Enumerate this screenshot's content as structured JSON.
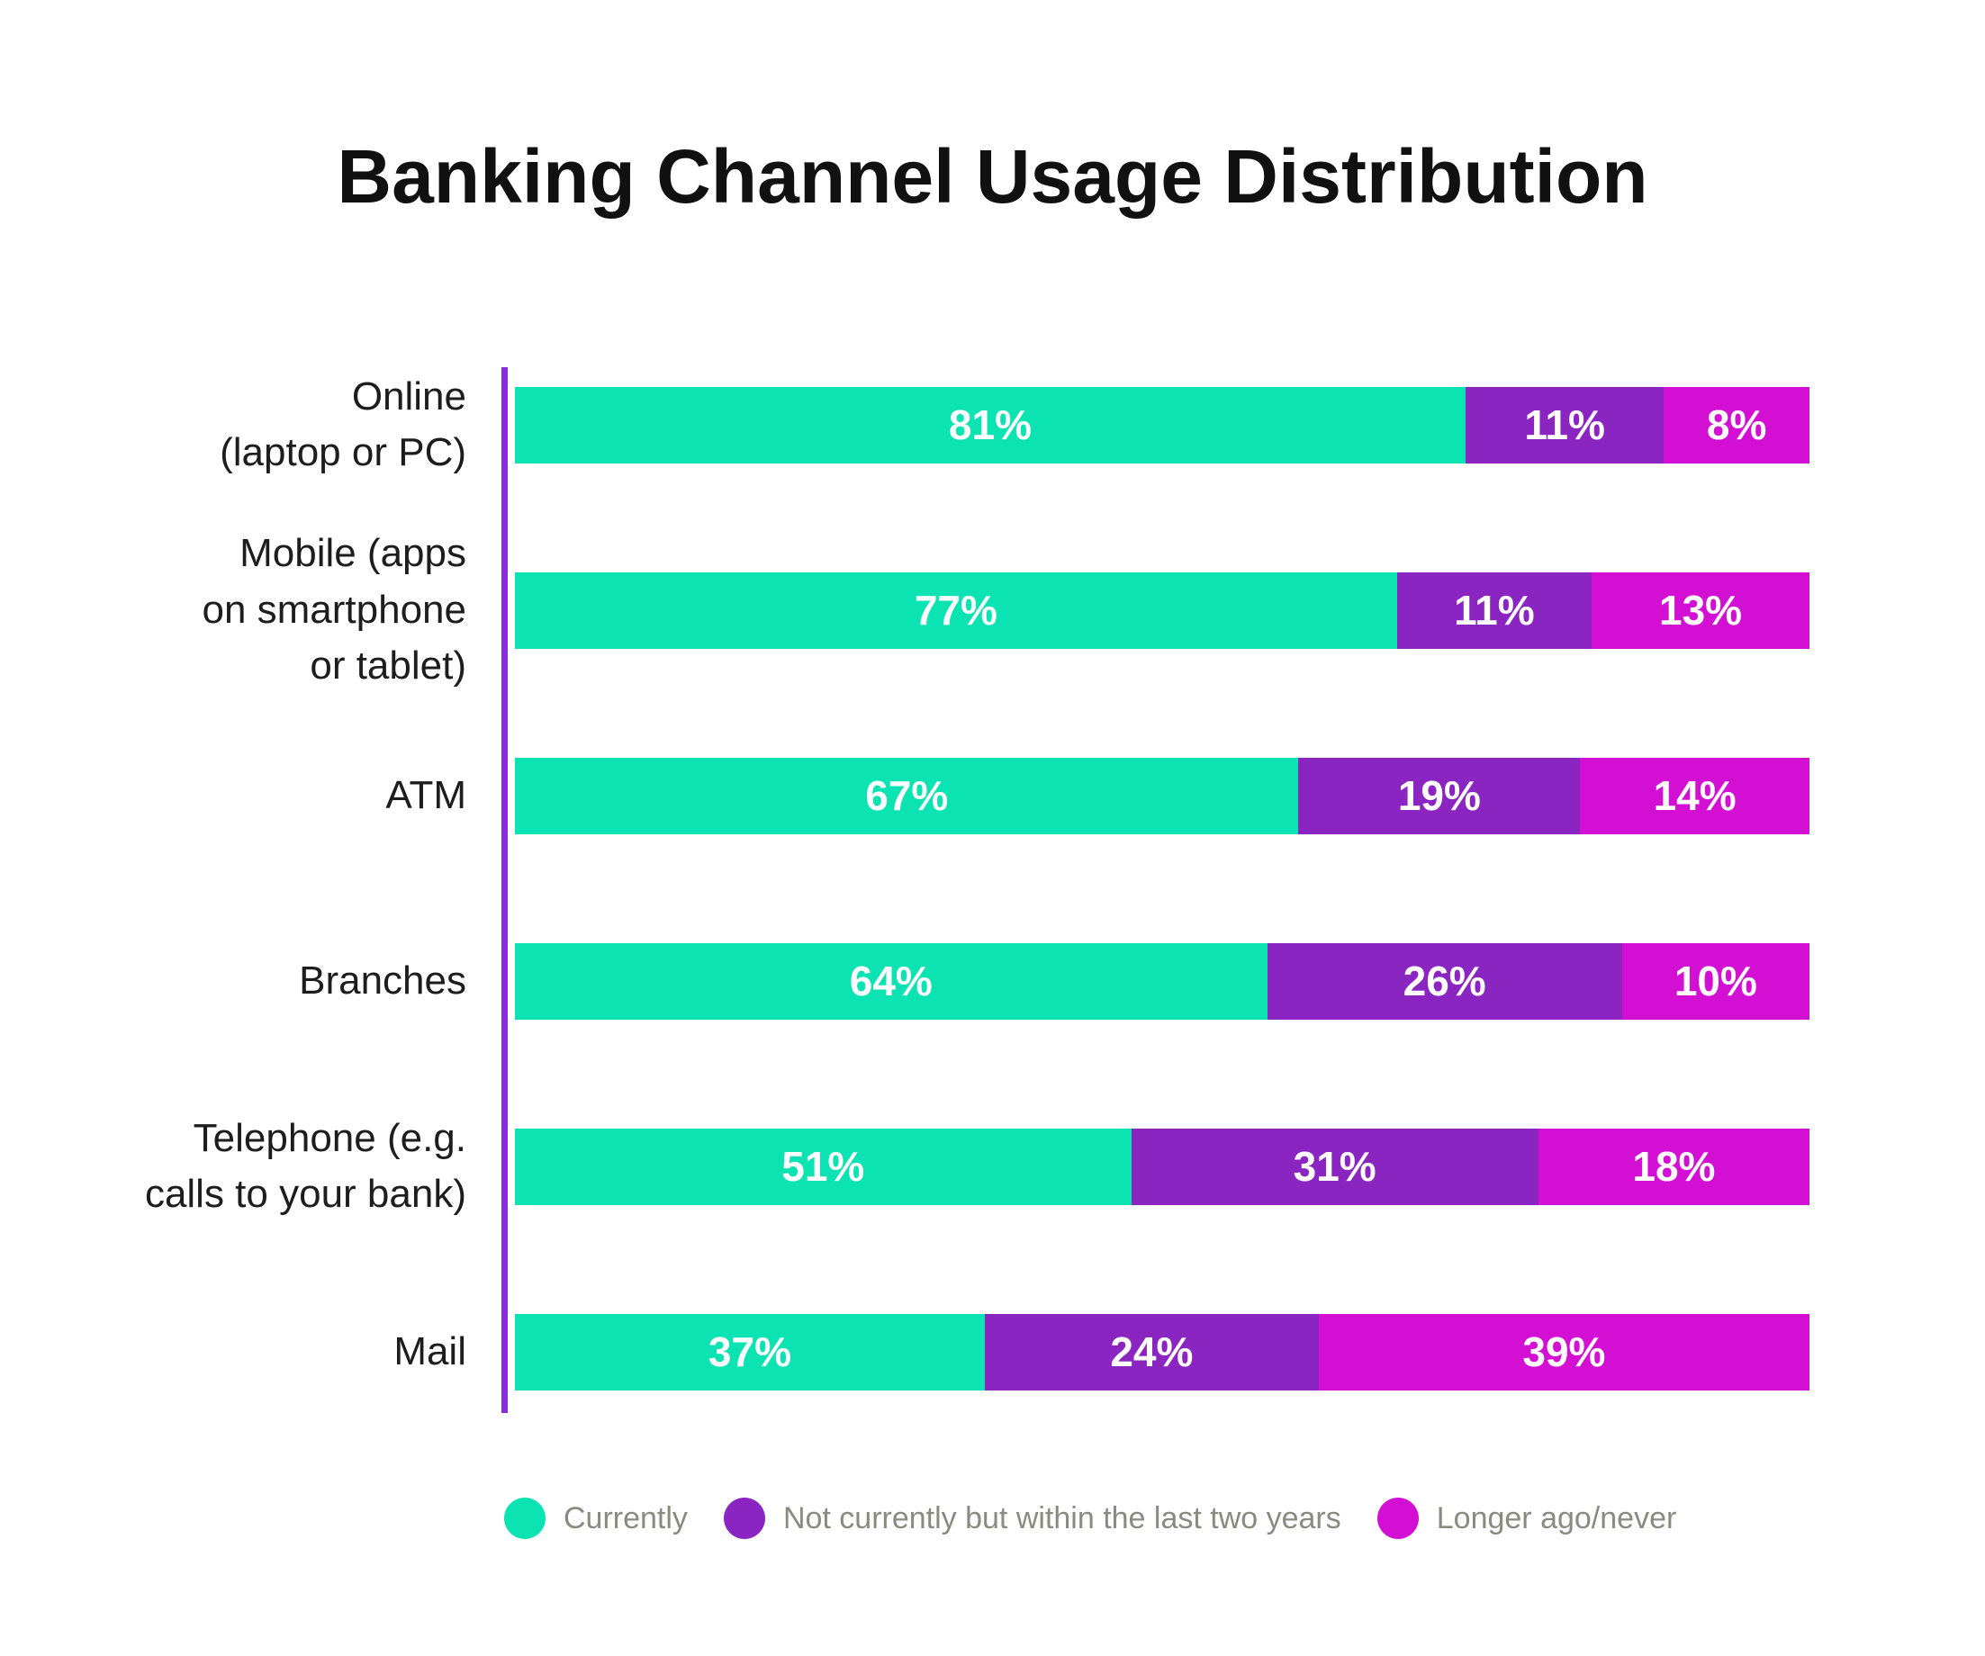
{
  "title": "Banking Channel Usage Distribution",
  "colors": {
    "currently": "#0be3b2",
    "not_currently": "#8a25c1",
    "longer_ago": "#d40fd4",
    "axis": "#8a2be2",
    "title_text": "#111111",
    "category_text": "#1d1d1d",
    "legend_text": "#8a8a80",
    "bar_value_text": "#ffffff"
  },
  "chart_data": {
    "type": "bar",
    "orientation": "horizontal",
    "stacked": true,
    "title": "Banking Channel Usage Distribution",
    "categories": [
      "Online (laptop or PC)",
      "Mobile (apps on smartphone or tablet)",
      "ATM",
      "Branches",
      "Telephone (e.g. calls to your bank)",
      "Mail"
    ],
    "series": [
      {
        "name": "Currently",
        "color": "#0be3b2",
        "values": [
          81,
          77,
          67,
          64,
          51,
          37
        ]
      },
      {
        "name": "Not currently but within the last two years",
        "color": "#8a25c1",
        "values": [
          11,
          11,
          19,
          26,
          31,
          24
        ]
      },
      {
        "name": "Longer ago/never",
        "color": "#d40fd4",
        "values": [
          8,
          13,
          14,
          10,
          18,
          39
        ]
      }
    ],
    "value_suffix": "%",
    "xlim": [
      0,
      100
    ],
    "grid": false,
    "legend_position": "bottom"
  },
  "rows": [
    {
      "label": "Online\n(laptop or PC)",
      "segments": [
        {
          "text": "81%",
          "value": 81
        },
        {
          "text": "11%",
          "value": 11
        },
        {
          "text": "8%",
          "value": 8
        }
      ]
    },
    {
      "label": "Mobile (apps\non smartphone\nor tablet)",
      "segments": [
        {
          "text": "77%",
          "value": 77
        },
        {
          "text": "11%",
          "value": 11
        },
        {
          "text": "13%",
          "value": 13
        }
      ]
    },
    {
      "label": "ATM",
      "segments": [
        {
          "text": "67%",
          "value": 67
        },
        {
          "text": "19%",
          "value": 19
        },
        {
          "text": "14%",
          "value": 14
        }
      ]
    },
    {
      "label": "Branches",
      "segments": [
        {
          "text": "64%",
          "value": 64
        },
        {
          "text": "26%",
          "value": 26
        },
        {
          "text": "10%",
          "value": 10
        }
      ]
    },
    {
      "label": "Telephone (e.g.\ncalls to your bank)",
      "segments": [
        {
          "text": "51%",
          "value": 51
        },
        {
          "text": "31%",
          "value": 31
        },
        {
          "text": "18%",
          "value": 18
        }
      ]
    },
    {
      "label": "Mail",
      "segments": [
        {
          "text": "37%",
          "value": 37
        },
        {
          "text": "24%",
          "value": 24
        },
        {
          "text": "39%",
          "value": 39
        }
      ]
    }
  ],
  "legend": {
    "items": [
      {
        "label": "Currently",
        "color": "#0be3b2"
      },
      {
        "label": "Not currently but within the last two years",
        "color": "#8a25c1"
      },
      {
        "label": "Longer ago/never",
        "color": "#d40fd4"
      }
    ]
  }
}
